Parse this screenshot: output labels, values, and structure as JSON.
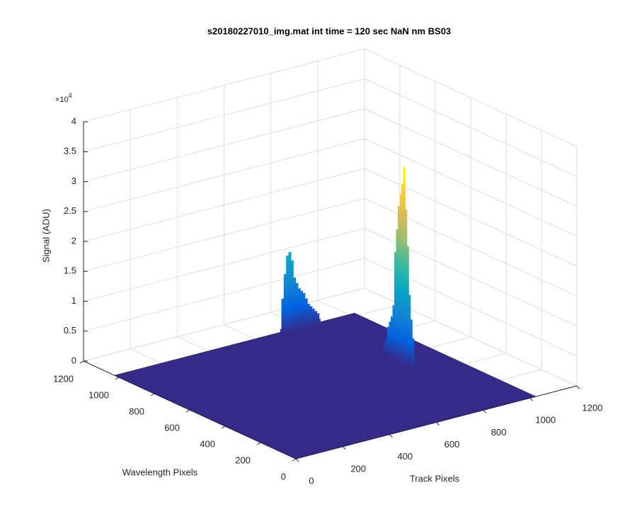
{
  "chart_data": {
    "type": "surface3d",
    "title": "s20180227010_img.mat int time = 120 sec  NaN nm BS03",
    "xlabel": "Track Pixels",
    "ylabel": "Wavelength Pixels",
    "zlabel": "Signal (ADU)",
    "xlim": [
      0,
      1200
    ],
    "xticks": [
      0,
      200,
      400,
      600,
      800,
      1000,
      1200
    ],
    "ylim": [
      0,
      1200
    ],
    "yticks": [
      0,
      200,
      400,
      600,
      800,
      1000,
      1200
    ],
    "zlim": [
      0,
      40000
    ],
    "zticks": [
      {
        "value": 0,
        "label": "0"
      },
      {
        "value": 5000,
        "label": "0.5"
      },
      {
        "value": 10000,
        "label": "1"
      },
      {
        "value": 15000,
        "label": "1.5"
      },
      {
        "value": 20000,
        "label": "2"
      },
      {
        "value": 25000,
        "label": "2.5"
      },
      {
        "value": 30000,
        "label": "3"
      },
      {
        "value": 35000,
        "label": "3.5"
      },
      {
        "value": 40000,
        "label": "4"
      }
    ],
    "z_scale_label": "×10",
    "z_scale_exponent": 4,
    "grid": true,
    "colormap": "parula",
    "surface": {
      "track_extent": [
        0,
        1024
      ],
      "wavelength_extent": [
        0,
        1024
      ],
      "value": 0,
      "color": "#352a87"
    },
    "ridges": [
      {
        "track": [
          690,
          700,
          710,
          720,
          730,
          740,
          750,
          760,
          770,
          780,
          790,
          800,
          810,
          820,
          830,
          840,
          850,
          860
        ],
        "wavelength": [
          1000,
          1000,
          1000,
          1000,
          1000,
          1000,
          1000,
          1000,
          1000,
          1000,
          1000,
          1000,
          1000,
          1000,
          1000,
          1000,
          1000,
          1000
        ],
        "values": [
          1000,
          6000,
          10000,
          13000,
          13500,
          12000,
          9000,
          8000,
          7000,
          6500,
          6000,
          5000,
          4000,
          3500,
          3000,
          2500,
          2000,
          1000
        ]
      },
      {
        "track": [
          856,
          856,
          856,
          856,
          856,
          856,
          856,
          856,
          856,
          856,
          856,
          856,
          856,
          856,
          856,
          856,
          856,
          856,
          856
        ],
        "wavelength": [
          640,
          630,
          620,
          610,
          600,
          590,
          580,
          570,
          560,
          550,
          540,
          530,
          520,
          510,
          500,
          490,
          480,
          470,
          460
        ],
        "values": [
          1000,
          2000,
          3000,
          5000,
          6000,
          7000,
          9000,
          18000,
          22000,
          26000,
          28000,
          30000,
          33000,
          26000,
          20000,
          12000,
          8000,
          5000,
          2000
        ]
      }
    ]
  }
}
